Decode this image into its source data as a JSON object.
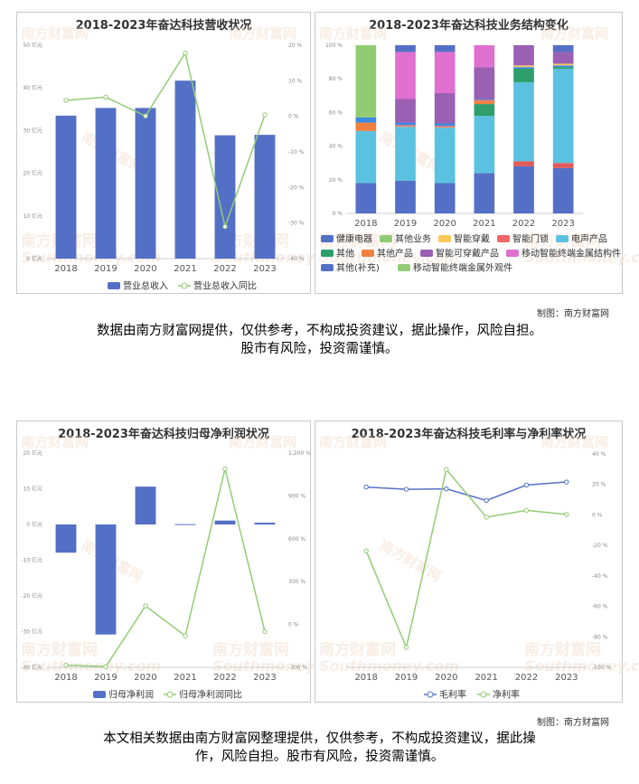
{
  "credit": "制图：南方财富网",
  "watermark": {
    "cn": "南方财富网",
    "en": "Southmoney.com"
  },
  "disclaimer1": "数据由南方财富网提供，仅供参考，不构成投资建议，据此操作，风险自担。\n股市有风险，投资需谨慎。",
  "disclaimer2": "本文相关数据由南方财富网整理提供，仅供参考，不构成投资建议，据此操\n作，风险自担。股市有风险，投资需谨慎。",
  "colors": {
    "blue": "#5470c6",
    "green": "#91cc75"
  },
  "chart_data": [
    {
      "type": "bar",
      "title": "2018-2023年奋达科技营收状况",
      "categories": [
        "2018",
        "2019",
        "2020",
        "2021",
        "2022",
        "2023"
      ],
      "series": [
        {
          "name": "营业总收入",
          "type": "bar",
          "axis": "left",
          "values": [
            33.5,
            35.3,
            35.3,
            41.7,
            28.9,
            29.0
          ]
        },
        {
          "name": "营业总收入同比",
          "type": "line",
          "axis": "right",
          "values": [
            4.5,
            5.4,
            0.1,
            17.8,
            -31.0,
            0.4
          ]
        }
      ],
      "y_left": {
        "min": 0,
        "max": 50,
        "ticks": [
          "0 亿元",
          "10 亿元",
          "20 亿元",
          "30 亿元",
          "40 亿元",
          "50 亿元"
        ]
      },
      "y_right": {
        "min": -40,
        "max": 20,
        "ticks": [
          "-40 %",
          "-30 %",
          "-20 %",
          "-10 %",
          "0 %",
          "10 %",
          "20 %"
        ]
      },
      "legend": "bottom"
    },
    {
      "type": "bar",
      "stacked": true,
      "title": "2018-2023年奋达科技业务结构变化",
      "categories": [
        "2018",
        "2019",
        "2020",
        "2021",
        "2022",
        "2023"
      ],
      "y": {
        "min": 0,
        "max": 100,
        "ticks": [
          "0 %",
          "20 %",
          "40 %",
          "60 %",
          "80 %",
          "100 %"
        ]
      },
      "series": [
        {
          "name": "其他(补充)",
          "color": "#5470c6",
          "values": [
            18,
            19.5,
            18,
            24,
            28,
            27
          ]
        },
        {
          "name": "健康电器",
          "color": "#e15a5a",
          "values": [
            0,
            0,
            0,
            0,
            3,
            3
          ]
        },
        {
          "name": "电声产品",
          "color": "#5bc1e0",
          "values": [
            31,
            32,
            33,
            34,
            47,
            56
          ]
        },
        {
          "name": "其他",
          "color": "#2e9e6a",
          "values": [
            0,
            0,
            0,
            7,
            8,
            1
          ]
        },
        {
          "name": "其他产品",
          "color": "#f08040",
          "values": [
            5,
            0.5,
            0.5,
            2,
            0,
            0
          ]
        },
        {
          "name": "智能门锁",
          "color": "#ee6666",
          "values": [
            0,
            0.5,
            0.5,
            0.5,
            0,
            0
          ]
        },
        {
          "name": "其他业务",
          "color": "#3c8ae3",
          "values": [
            3,
            1.5,
            1.5,
            0.5,
            1,
            1
          ]
        },
        {
          "name": "智能穿戴",
          "color": "#fac858",
          "values": [
            0,
            0,
            0,
            0,
            1,
            1
          ]
        },
        {
          "name": "智能可穿戴产品",
          "color": "#9a60b4",
          "values": [
            0,
            14,
            18,
            19,
            12,
            7
          ]
        },
        {
          "name": "移动智能终端金属结构件",
          "color": "#e070d0",
          "values": [
            0,
            28,
            24.5,
            13,
            0,
            0
          ]
        },
        {
          "name": "移动智能终端金属外观件",
          "color": "#91cc75",
          "values": [
            43,
            0,
            0,
            0,
            0,
            0
          ]
        },
        {
          "name": "其他业务",
          "color": "#5470c6",
          "values": [
            0,
            4,
            4,
            0,
            0,
            4
          ]
        }
      ],
      "legend_rows": [
        [
          {
            "name": "健康电器",
            "color": "#5470c6"
          },
          {
            "name": "其他业务",
            "color": "#91cc75"
          },
          {
            "name": "智能穿戴",
            "color": "#fac858"
          },
          {
            "name": "智能门锁",
            "color": "#ee6666"
          },
          {
            "name": "电声产品",
            "color": "#5bc1e0"
          }
        ],
        [
          {
            "name": "其他",
            "color": "#2e9e6a"
          },
          {
            "name": "其他产品",
            "color": "#f08040"
          },
          {
            "name": "智能可穿戴产品",
            "color": "#9a60b4"
          },
          {
            "name": "移动智能终端金属结构件",
            "color": "#e070d0"
          }
        ],
        [
          {
            "name": "其他(补充)",
            "color": "#5470c6"
          },
          {
            "name": "移动智能终端金属外观件",
            "color": "#91cc75"
          }
        ]
      ]
    },
    {
      "type": "bar",
      "title": "2018-2023年奋达科技归母净利润状况",
      "categories": [
        "2018",
        "2019",
        "2020",
        "2021",
        "2022",
        "2023"
      ],
      "series": [
        {
          "name": "归母净利润",
          "type": "bar",
          "axis": "left",
          "values": [
            -7.9,
            -30.8,
            10.6,
            0.1,
            1.1,
            0.5
          ]
        },
        {
          "name": "归母净利润同比",
          "type": "line",
          "axis": "right",
          "values": [
            -285,
            -295,
            130,
            -80,
            1090,
            -50
          ]
        }
      ],
      "y_left": {
        "min": -40,
        "max": 20,
        "ticks": [
          "-40 亿元",
          "-30 亿元",
          "-20 亿元",
          "-10 亿元",
          "0 亿元",
          "10 亿元",
          "20 亿元"
        ]
      },
      "y_right": {
        "min": -300,
        "max": 1200,
        "ticks": [
          "-300 %",
          "0 %",
          "300 %",
          "600 %",
          "900 %",
          "1,200 %"
        ]
      },
      "legend": "bottom"
    },
    {
      "type": "line",
      "title": "2018-2023年奋达科技毛利率与净利率状况",
      "categories": [
        "2018",
        "2019",
        "2020",
        "2021",
        "2022",
        "2023"
      ],
      "series": [
        {
          "name": "毛利率",
          "values": [
            18.3,
            16.8,
            17.1,
            9.5,
            19.6,
            21.6
          ]
        },
        {
          "name": "净利率",
          "values": [
            -23.6,
            -86.9,
            29.8,
            -1.5,
            3.0,
            0.3
          ]
        }
      ],
      "y": {
        "min": -100,
        "max": 40,
        "ticks": [
          "-100 %",
          "-80 %",
          "-60 %",
          "-40 %",
          "-20 %",
          "0 %",
          "20 %",
          "40 %"
        ]
      },
      "legend": "bottom"
    }
  ]
}
